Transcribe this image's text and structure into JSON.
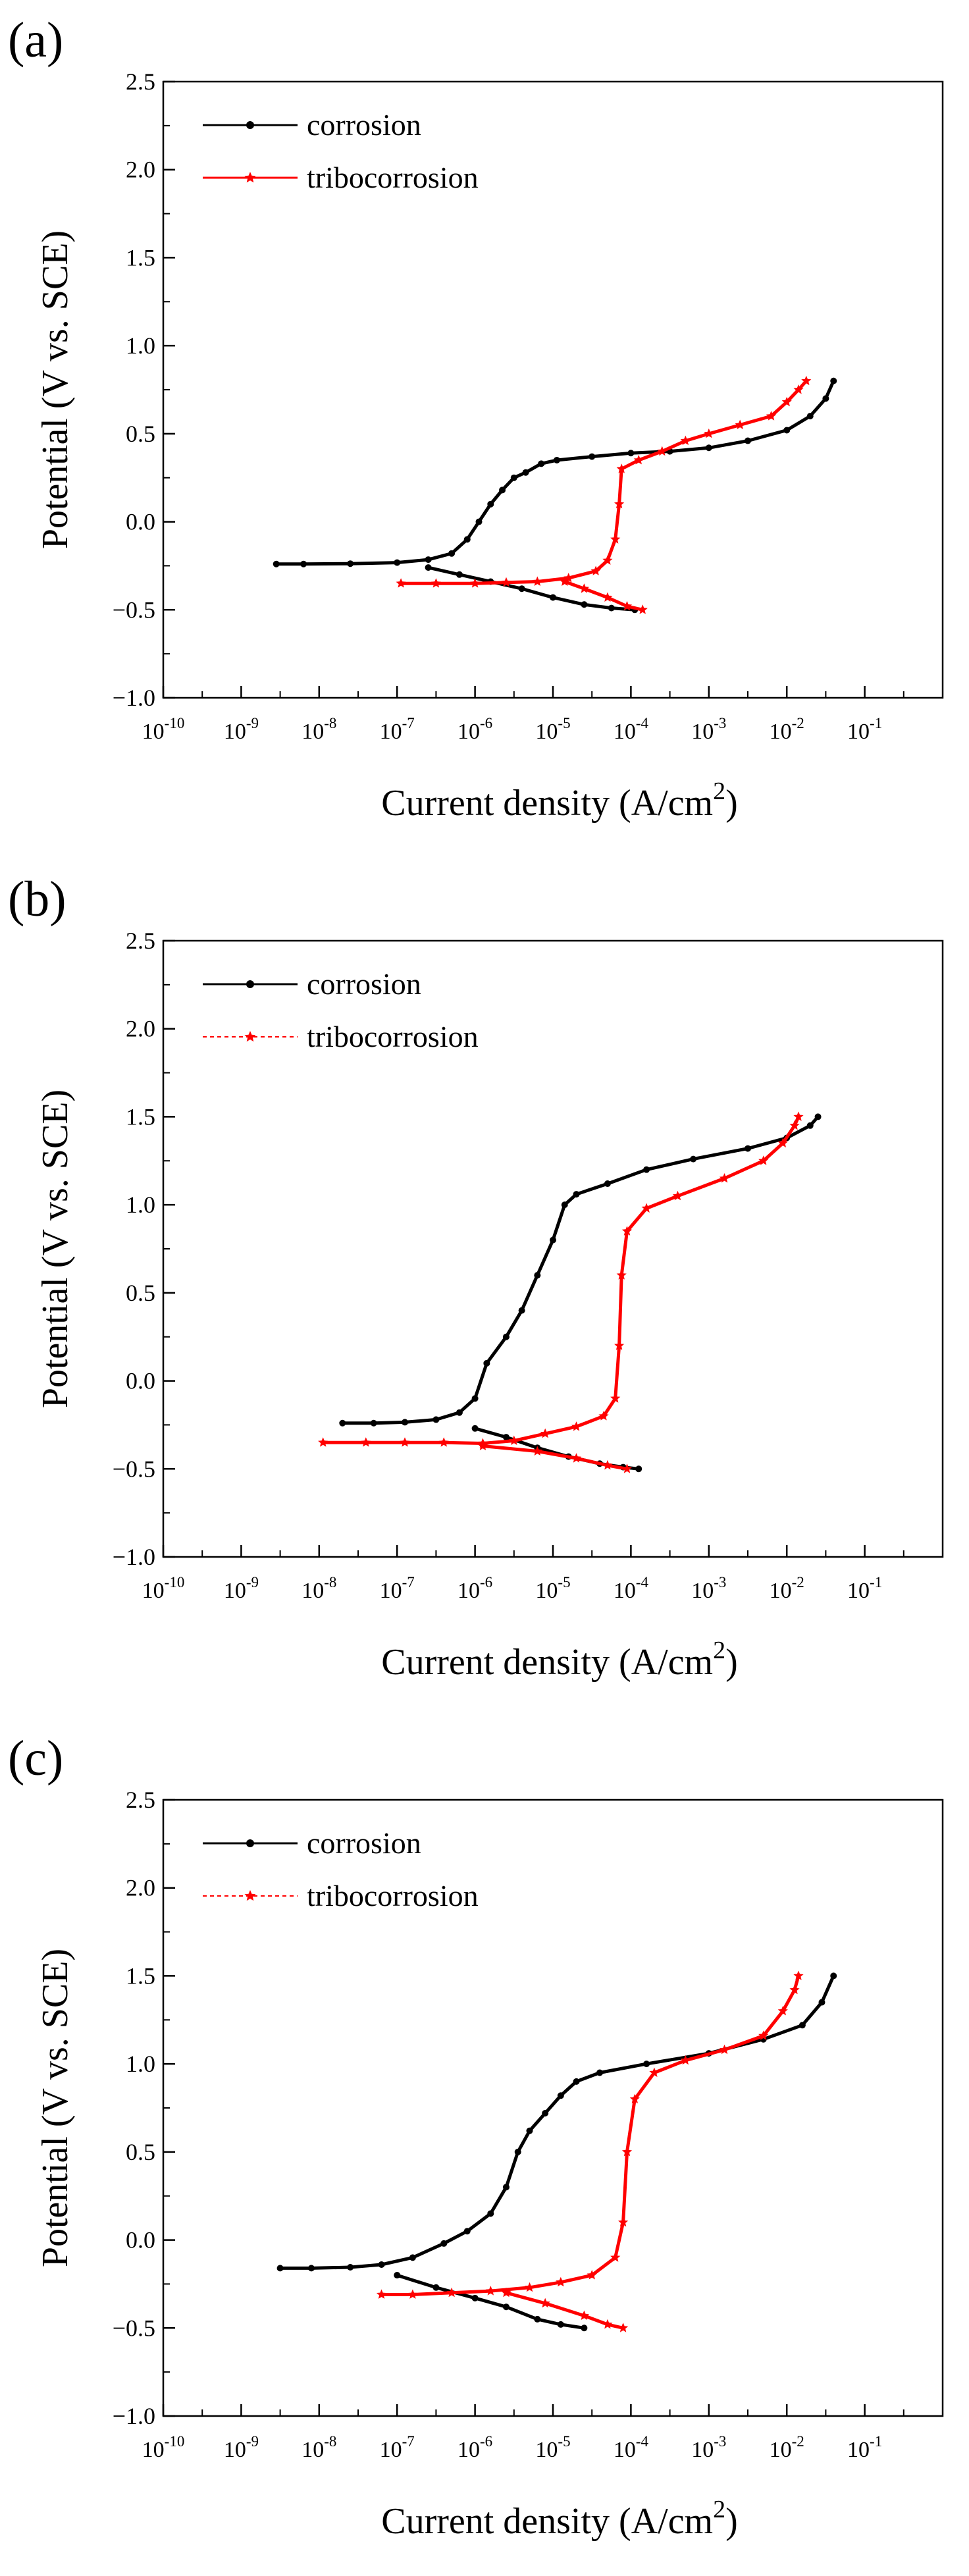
{
  "chart_data": [
    {
      "type": "line",
      "panel_label": "(a)",
      "xlabel": "Current density (A/cm",
      "xlabel_sup": "2",
      "xlabel_end": ")",
      "ylabel": "Potential (V vs. SCE)",
      "x_scale": "log",
      "xlim": [
        1e-10,
        1
      ],
      "ylim": [
        -1.0,
        2.5
      ],
      "x_ticks": [
        {
          "base": "10",
          "exp": "-10"
        },
        {
          "base": "10",
          "exp": "-9"
        },
        {
          "base": "10",
          "exp": "-8"
        },
        {
          "base": "10",
          "exp": "-7"
        },
        {
          "base": "10",
          "exp": "-6"
        },
        {
          "base": "10",
          "exp": "-5"
        },
        {
          "base": "10",
          "exp": "-4"
        },
        {
          "base": "10",
          "exp": "-3"
        },
        {
          "base": "10",
          "exp": "-2"
        },
        {
          "base": "10",
          "exp": "-1"
        }
      ],
      "y_ticks": [
        "−1.0",
        "−0.5",
        "0.0",
        "0.5",
        "1.0",
        "1.5",
        "2.0",
        "2.5"
      ],
      "legend_position": "top-left",
      "series": [
        {
          "name": "corrosion",
          "color": "#000000",
          "marker": "circle",
          "line_style": "solid",
          "branches": [
            [
              [
                -8.55,
                -0.24
              ],
              [
                -8.2,
                -0.24
              ],
              [
                -7.6,
                -0.238
              ],
              [
                -7.0,
                -0.232
              ],
              [
                -6.6,
                -0.215
              ],
              [
                -6.3,
                -0.18
              ],
              [
                -6.1,
                -0.1
              ],
              [
                -5.95,
                0.0
              ],
              [
                -5.8,
                0.1
              ],
              [
                -5.65,
                0.18
              ],
              [
                -5.5,
                0.25
              ],
              [
                -5.35,
                0.28
              ],
              [
                -5.15,
                0.33
              ],
              [
                -4.95,
                0.35
              ],
              [
                -4.5,
                0.37
              ],
              [
                -4.0,
                0.39
              ],
              [
                -3.5,
                0.4
              ],
              [
                -3.0,
                0.42
              ],
              [
                -2.5,
                0.46
              ],
              [
                -2.0,
                0.52
              ],
              [
                -1.7,
                0.6
              ],
              [
                -1.5,
                0.7
              ],
              [
                -1.4,
                0.8
              ]
            ],
            [
              [
                -6.6,
                -0.26
              ],
              [
                -6.2,
                -0.3
              ],
              [
                -5.8,
                -0.34
              ],
              [
                -5.4,
                -0.38
              ],
              [
                -5.0,
                -0.43
              ],
              [
                -4.6,
                -0.47
              ],
              [
                -4.25,
                -0.49
              ],
              [
                -3.95,
                -0.5
              ]
            ]
          ]
        },
        {
          "name": "tribocorrosion",
          "color": "#ff0000",
          "marker": "star",
          "line_style": "solid",
          "branches": [
            [
              [
                -6.95,
                -0.35
              ],
              [
                -6.5,
                -0.35
              ],
              [
                -6.0,
                -0.35
              ],
              [
                -5.6,
                -0.345
              ],
              [
                -5.2,
                -0.34
              ],
              [
                -4.8,
                -0.32
              ],
              [
                -4.45,
                -0.28
              ],
              [
                -4.3,
                -0.22
              ],
              [
                -4.2,
                -0.1
              ],
              [
                -4.15,
                0.1
              ],
              [
                -4.12,
                0.3
              ],
              [
                -3.9,
                0.35
              ],
              [
                -3.6,
                0.4
              ],
              [
                -3.3,
                0.46
              ],
              [
                -3.0,
                0.5
              ],
              [
                -2.6,
                0.55
              ],
              [
                -2.2,
                0.6
              ],
              [
                -2.0,
                0.68
              ],
              [
                -1.85,
                0.75
              ],
              [
                -1.75,
                0.8
              ]
            ],
            [
              [
                -4.85,
                -0.34
              ],
              [
                -4.6,
                -0.38
              ],
              [
                -4.3,
                -0.43
              ],
              [
                -4.05,
                -0.48
              ],
              [
                -3.85,
                -0.5
              ]
            ]
          ]
        }
      ]
    },
    {
      "type": "line",
      "panel_label": "(b)",
      "xlabel": "Current density (A/cm",
      "xlabel_sup": "2",
      "xlabel_end": ")",
      "ylabel": "Potential (V vs. SCE)",
      "x_scale": "log",
      "xlim": [
        1e-10,
        1
      ],
      "ylim": [
        -1.0,
        2.5
      ],
      "x_ticks": [
        {
          "base": "10",
          "exp": "-10"
        },
        {
          "base": "10",
          "exp": "-9"
        },
        {
          "base": "10",
          "exp": "-8"
        },
        {
          "base": "10",
          "exp": "-7"
        },
        {
          "base": "10",
          "exp": "-6"
        },
        {
          "base": "10",
          "exp": "-5"
        },
        {
          "base": "10",
          "exp": "-4"
        },
        {
          "base": "10",
          "exp": "-3"
        },
        {
          "base": "10",
          "exp": "-2"
        },
        {
          "base": "10",
          "exp": "-1"
        }
      ],
      "y_ticks": [
        "−1.0",
        "−0.5",
        "0.0",
        "0.5",
        "1.0",
        "1.5",
        "2.0",
        "2.5"
      ],
      "legend_position": "top-left",
      "series": [
        {
          "name": "corrosion",
          "color": "#000000",
          "marker": "circle",
          "line_style": "solid",
          "branches": [
            [
              [
                -7.7,
                -0.24
              ],
              [
                -7.3,
                -0.24
              ],
              [
                -6.9,
                -0.235
              ],
              [
                -6.5,
                -0.22
              ],
              [
                -6.2,
                -0.18
              ],
              [
                -6.0,
                -0.1
              ],
              [
                -5.85,
                0.1
              ],
              [
                -5.6,
                0.25
              ],
              [
                -5.4,
                0.4
              ],
              [
                -5.2,
                0.6
              ],
              [
                -5.0,
                0.8
              ],
              [
                -4.85,
                1.0
              ],
              [
                -4.7,
                1.06
              ],
              [
                -4.3,
                1.12
              ],
              [
                -3.8,
                1.2
              ],
              [
                -3.2,
                1.26
              ],
              [
                -2.5,
                1.32
              ],
              [
                -2.0,
                1.38
              ],
              [
                -1.7,
                1.45
              ],
              [
                -1.6,
                1.5
              ]
            ],
            [
              [
                -6.0,
                -0.27
              ],
              [
                -5.6,
                -0.32
              ],
              [
                -5.2,
                -0.38
              ],
              [
                -4.8,
                -0.43
              ],
              [
                -4.4,
                -0.47
              ],
              [
                -4.1,
                -0.49
              ],
              [
                -3.9,
                -0.5
              ]
            ]
          ]
        },
        {
          "name": "tribocorrosion",
          "color": "#ff0000",
          "marker": "star",
          "line_style": "dashed",
          "branches": [
            [
              [
                -7.95,
                -0.35
              ],
              [
                -7.4,
                -0.35
              ],
              [
                -6.9,
                -0.35
              ],
              [
                -6.4,
                -0.35
              ],
              [
                -5.9,
                -0.355
              ],
              [
                -5.5,
                -0.34
              ],
              [
                -5.1,
                -0.3
              ],
              [
                -4.7,
                -0.26
              ],
              [
                -4.35,
                -0.2
              ],
              [
                -4.2,
                -0.1
              ],
              [
                -4.15,
                0.2
              ],
              [
                -4.12,
                0.6
              ],
              [
                -4.05,
                0.85
              ],
              [
                -3.8,
                0.98
              ],
              [
                -3.4,
                1.05
              ],
              [
                -2.8,
                1.15
              ],
              [
                -2.3,
                1.25
              ],
              [
                -2.05,
                1.35
              ],
              [
                -1.9,
                1.45
              ],
              [
                -1.85,
                1.5
              ]
            ],
            [
              [
                -5.9,
                -0.37
              ],
              [
                -5.2,
                -0.4
              ],
              [
                -4.7,
                -0.44
              ],
              [
                -4.3,
                -0.48
              ],
              [
                -4.05,
                -0.5
              ]
            ]
          ]
        }
      ]
    },
    {
      "type": "line",
      "panel_label": "(c)",
      "xlabel": "Current density (A/cm",
      "xlabel_sup": "2",
      "xlabel_end": ")",
      "ylabel": "Potential (V vs. SCE)",
      "x_scale": "log",
      "xlim": [
        1e-10,
        1
      ],
      "ylim": [
        -1.0,
        2.5
      ],
      "x_ticks": [
        {
          "base": "10",
          "exp": "-10"
        },
        {
          "base": "10",
          "exp": "-9"
        },
        {
          "base": "10",
          "exp": "-8"
        },
        {
          "base": "10",
          "exp": "-7"
        },
        {
          "base": "10",
          "exp": "-6"
        },
        {
          "base": "10",
          "exp": "-5"
        },
        {
          "base": "10",
          "exp": "-4"
        },
        {
          "base": "10",
          "exp": "-3"
        },
        {
          "base": "10",
          "exp": "-2"
        },
        {
          "base": "10",
          "exp": "-1"
        }
      ],
      "y_ticks": [
        "−1.0",
        "−0.5",
        "0.0",
        "0.5",
        "1.0",
        "1.5",
        "2.0",
        "2.5"
      ],
      "legend_position": "top-left",
      "series": [
        {
          "name": "corrosion",
          "color": "#000000",
          "marker": "circle",
          "line_style": "solid",
          "branches": [
            [
              [
                -8.5,
                -0.16
              ],
              [
                -8.1,
                -0.16
              ],
              [
                -7.6,
                -0.155
              ],
              [
                -7.2,
                -0.14
              ],
              [
                -6.8,
                -0.1
              ],
              [
                -6.4,
                -0.02
              ],
              [
                -6.1,
                0.05
              ],
              [
                -5.8,
                0.15
              ],
              [
                -5.6,
                0.3
              ],
              [
                -5.45,
                0.5
              ],
              [
                -5.3,
                0.62
              ],
              [
                -5.1,
                0.72
              ],
              [
                -4.9,
                0.82
              ],
              [
                -4.7,
                0.9
              ],
              [
                -4.4,
                0.95
              ],
              [
                -3.8,
                1.0
              ],
              [
                -3.0,
                1.06
              ],
              [
                -2.3,
                1.14
              ],
              [
                -1.8,
                1.22
              ],
              [
                -1.55,
                1.35
              ],
              [
                -1.4,
                1.5
              ]
            ],
            [
              [
                -7.0,
                -0.2
              ],
              [
                -6.5,
                -0.27
              ],
              [
                -6.0,
                -0.33
              ],
              [
                -5.6,
                -0.38
              ],
              [
                -5.2,
                -0.45
              ],
              [
                -4.9,
                -0.48
              ],
              [
                -4.6,
                -0.5
              ]
            ]
          ]
        },
        {
          "name": "tribocorrosion",
          "color": "#ff0000",
          "marker": "star",
          "line_style": "dashed",
          "branches": [
            [
              [
                -7.2,
                -0.31
              ],
              [
                -6.8,
                -0.31
              ],
              [
                -6.3,
                -0.3
              ],
              [
                -5.8,
                -0.29
              ],
              [
                -5.3,
                -0.27
              ],
              [
                -4.9,
                -0.24
              ],
              [
                -4.5,
                -0.2
              ],
              [
                -4.2,
                -0.1
              ],
              [
                -4.1,
                0.1
              ],
              [
                -4.05,
                0.5
              ],
              [
                -3.95,
                0.8
              ],
              [
                -3.7,
                0.95
              ],
              [
                -3.3,
                1.02
              ],
              [
                -2.8,
                1.08
              ],
              [
                -2.3,
                1.16
              ],
              [
                -2.05,
                1.3
              ],
              [
                -1.9,
                1.42
              ],
              [
                -1.85,
                1.5
              ]
            ],
            [
              [
                -5.6,
                -0.3
              ],
              [
                -5.1,
                -0.36
              ],
              [
                -4.6,
                -0.43
              ],
              [
                -4.3,
                -0.48
              ],
              [
                -4.1,
                -0.5
              ]
            ]
          ]
        }
      ]
    }
  ]
}
